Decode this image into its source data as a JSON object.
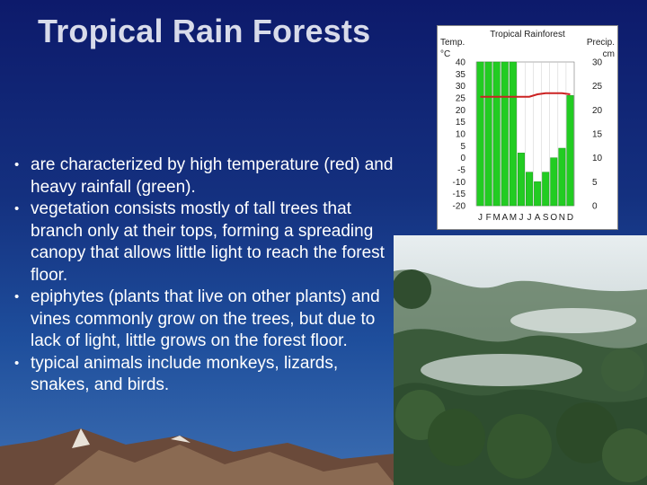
{
  "slide": {
    "title": "Tropical Rain Forests",
    "bullets": [
      "are characterized by high temperature (red) and heavy rainfall (green).",
      "vegetation consists mostly of tall trees that branch only at their tops, forming a spreading canopy that allows little light to reach the forest floor.",
      "epiphytes (plants that live on other plants) and vines commonly grow on the trees, but due to lack of light, little grows on the forest floor.",
      "typical animals include monkeys, lizards, snakes, and birds."
    ]
  },
  "chart_data": {
    "type": "bar",
    "title": "Tropical Rainforest",
    "left_axis_label": [
      "Temp.",
      "°C"
    ],
    "right_axis_label": [
      "Precip.",
      "cm"
    ],
    "temp_ticks": [
      "40",
      "35",
      "30",
      "25",
      "20",
      "15",
      "10",
      "5",
      "0",
      "-5",
      "-10",
      "-15",
      "-20"
    ],
    "precip_ticks": [
      "30",
      "25",
      "20",
      "15",
      "10",
      "5",
      "0"
    ],
    "temp_range": [
      -20,
      40
    ],
    "precip_range": [
      0,
      30
    ],
    "categories": [
      "J",
      "F",
      "M",
      "A",
      "M",
      "J",
      "J",
      "A",
      "S",
      "O",
      "N",
      "D"
    ],
    "series": [
      {
        "kind": "bar",
        "color": "#22cc22",
        "values": [
          30,
          30,
          30,
          30,
          30,
          11,
          7,
          5,
          7,
          10,
          12,
          23
        ]
      },
      {
        "kind": "line",
        "color": "#cc2222",
        "values": [
          25.5,
          25.5,
          25.5,
          25.5,
          25.5,
          25.5,
          25.5,
          26.5,
          27,
          27,
          27,
          26.5
        ]
      }
    ],
    "colors": {
      "bar": "#22cc22",
      "line": "#cc2222"
    }
  }
}
